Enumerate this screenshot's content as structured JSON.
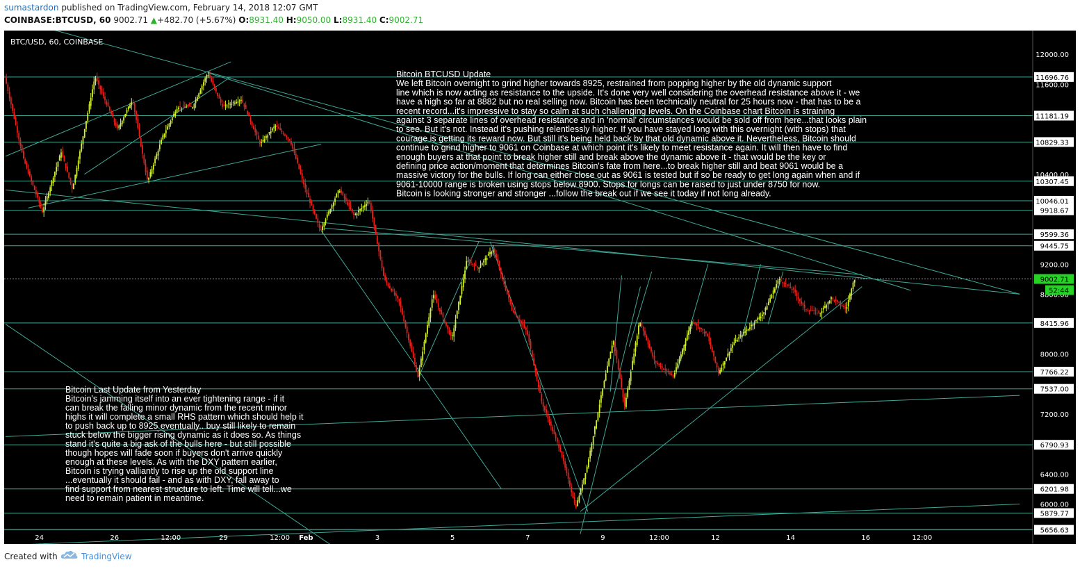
{
  "header": {
    "author": "sumastardon",
    "published_text": "published on TradingView.com, February 14, 2018 12:07 GMT",
    "symbol": "COINBASE:BTCUSD, 60",
    "last": "9002.71",
    "change": "+482.70 (+5.67%)",
    "o_label": "O:",
    "o_value": "8931.40",
    "h_label": "H:",
    "h_value": "9050.00",
    "l_label": "L:",
    "l_value": "8931.40",
    "c_label": "C:",
    "c_value": "9002.71"
  },
  "footer": {
    "created_label": "Created with",
    "brand": "TradingView",
    "logo_icon": "tradingview-cloud-icon"
  },
  "colors": {
    "background": "#000000",
    "up": "#d4f02a",
    "down": "#e8201a",
    "lines": "#3fa896",
    "text": "#ffffff",
    "price_tag_current": "#25d325",
    "price_tag_level": "#ffffff"
  },
  "chart_data": {
    "type": "candlestick",
    "title": "BTC/USD, 60, COINBASE",
    "xlabel": "",
    "ylabel": "",
    "ylim": [
      5550,
      12250
    ],
    "grid": false,
    "x_ticks": [
      "24",
      "26",
      "12:00",
      "29",
      "12:00",
      "Feb",
      "3",
      "5",
      "7",
      "9",
      "12:00",
      "12",
      "14",
      "16",
      "12:00"
    ],
    "x_tick_dates": [
      0.9,
      2.9,
      4.4,
      5.8,
      7.3,
      8.0,
      9.9,
      11.9,
      13.9,
      15.9,
      17.4,
      18.9,
      20.9,
      22.9,
      24.4
    ],
    "y_ticks": [
      6000,
      6400,
      6800,
      7200,
      7600,
      8000,
      8400,
      8800,
      9200,
      9600,
      10000,
      10400,
      10800,
      11200,
      11600,
      12000
    ],
    "y_ticks_visible": [
      "12000.00",
      "11600.00",
      "10400.00",
      "9200.00",
      "8800.00",
      "8000.00",
      "7200.00",
      "6400.00",
      "6000.00"
    ],
    "level_tags": [
      "11696.76",
      "11181.19",
      "10829.33",
      "10307.45",
      "10046.01",
      "9918.67",
      "9599.36",
      "9445.75",
      "8415.96",
      "7766.22",
      "7537.00",
      "6790.93",
      "6201.98",
      "5879.77",
      "5656.63"
    ],
    "levels": [
      11696.76,
      11181.19,
      10829.33,
      10307.45,
      10046.01,
      9918.67,
      9599.36,
      9445.75,
      8415.96,
      7766.22,
      7537.0,
      6790.93,
      6201.98,
      5879.77,
      5656.63
    ],
    "current_price_tag": "9002.71",
    "current_price": 9002.71,
    "countdown_tag": "52:44",
    "price_path": [
      [
        0.0,
        11700
      ],
      [
        0.5,
        10600
      ],
      [
        1.0,
        9900
      ],
      [
        1.5,
        10700
      ],
      [
        1.8,
        10200
      ],
      [
        2.4,
        11700
      ],
      [
        3.0,
        11000
      ],
      [
        3.4,
        11400
      ],
      [
        3.8,
        10300
      ],
      [
        4.2,
        10900
      ],
      [
        4.6,
        11300
      ],
      [
        5.0,
        11300
      ],
      [
        5.4,
        11750
      ],
      [
        5.8,
        11300
      ],
      [
        6.3,
        11400
      ],
      [
        6.8,
        10800
      ],
      [
        7.2,
        11050
      ],
      [
        7.6,
        10850
      ],
      [
        8.0,
        10200
      ],
      [
        8.4,
        9650
      ],
      [
        8.9,
        10200
      ],
      [
        9.3,
        9850
      ],
      [
        9.7,
        10050
      ],
      [
        10.1,
        9000
      ],
      [
        10.5,
        8700
      ],
      [
        11.0,
        7700
      ],
      [
        11.4,
        8800
      ],
      [
        11.9,
        8200
      ],
      [
        12.3,
        9250
      ],
      [
        12.6,
        9150
      ],
      [
        13.0,
        9400
      ],
      [
        13.5,
        8600
      ],
      [
        13.9,
        8300
      ],
      [
        14.3,
        7350
      ],
      [
        14.8,
        6700
      ],
      [
        15.2,
        5950
      ],
      [
        15.5,
        6500
      ],
      [
        15.9,
        7500
      ],
      [
        16.2,
        8200
      ],
      [
        16.5,
        7300
      ],
      [
        16.9,
        8450
      ],
      [
        17.3,
        7900
      ],
      [
        17.8,
        7700
      ],
      [
        18.3,
        8450
      ],
      [
        18.7,
        8250
      ],
      [
        19.0,
        7750
      ],
      [
        19.4,
        8150
      ],
      [
        19.8,
        8350
      ],
      [
        20.2,
        8550
      ],
      [
        20.6,
        9000
      ],
      [
        21.0,
        8850
      ],
      [
        21.3,
        8600
      ],
      [
        21.7,
        8550
      ],
      [
        22.0,
        8750
      ],
      [
        22.4,
        8600
      ],
      [
        22.6,
        9002.71
      ]
    ],
    "annotations": [
      {
        "title": "Bitcoin BTCUSD  Update",
        "lines": [
          "We left Bitcoin overnight to grind higher towards 8925, restrained from popping higher by the old dynamic support",
          "line which is now acting as resistance to the upside. It's done very well considering the overhead resistance above it - we",
          "have a high so far at 8882 but no real selling now. Bitcoin has been technically neutral for 25 hours now - that has to be a",
          "recent record...it's impressive to stay so calm at such challenging levels. On the Coinbase chart Bitcoin is straining",
          "against 3 separate lines of overhead resistance and in 'normal' circumstances would be sold off from here...that looks plain",
          "to see. But it's not. Instead it's pushing relentlessly higher. If you have stayed long with this overnight (with stops) that",
          "courage is getting its reward now. But still it's being held back by that old dynamic above it. Nevertheless, Bitcoin should",
          "continue to grind higher to 9061 on Coinbase at which point it's likely to meet resistance again. It will then have to find",
          "enough buyers at that point to break higher still and break above the dynamic above it - that would be the key or",
          "defining price action/moment that determines Bitcoin's fate from here...to break higher still and beat 9061 would be a",
          "massive victory for the bulls. If long can either close out as 9061 is tested but if so be ready to get long again when and if",
          "9061-10000 range is broken using stops below 8900. Stops for longs can be raised to just under 8750 for now.",
          "Bitcoin is looking stronger and stronger ...follow the break out if we see it today if not long already."
        ]
      },
      {
        "title": "Bitcoin  Last Update from Yesterday",
        "lines": [
          "Bitcoin's jamming itself into an ever tightening range  -  if it",
          "can break the falling minor dynamic from the recent minor",
          "highs it will complete a small RHS pattern which should help it",
          "to push back up to 8925 eventually.. buy still likely to remain",
          "stuck below the bigger rising dynamic as it does so. As things",
          "stand it's quite a big ask of the bulls here - but still possible",
          "though hopes will fade soon if buyers don't arrive quickly",
          "enough at these levels. As with the DXY pattern earlier,",
          "Bitcoin is trying valliantly to rise up the old support line",
          "...eventually it should fail -  and as with DXY, fall away to",
          "find support from nearest structure to left. Time will tell...we",
          "need to remain patient in meantime."
        ]
      }
    ],
    "trendlines": [
      [
        [
          0.0,
          10640
        ],
        [
          6.0,
          11900
        ]
      ],
      [
        [
          0.0,
          12500
        ],
        [
          27.0,
          8800
        ]
      ],
      [
        [
          5.4,
          11750
        ],
        [
          24.1,
          8850
        ]
      ],
      [
        [
          8.5,
          9680
        ],
        [
          22.8,
          9060
        ]
      ],
      [
        [
          0.0,
          10190
        ],
        [
          27.0,
          8800
        ]
      ],
      [
        [
          0.0,
          8400
        ],
        [
          10.0,
          5000
        ]
      ],
      [
        [
          0.0,
          6900
        ],
        [
          27.0,
          7450
        ]
      ],
      [
        [
          0.0,
          5450
        ],
        [
          27.0,
          6000
        ]
      ],
      [
        [
          0.6,
          9950
        ],
        [
          8.4,
          10800
        ]
      ],
      [
        [
          2.1,
          10400
        ],
        [
          6.0,
          11700
        ]
      ],
      [
        [
          8.4,
          9650
        ],
        [
          13.2,
          6200
        ]
      ],
      [
        [
          11.0,
          7700
        ],
        [
          12.6,
          9500
        ]
      ],
      [
        [
          12.9,
          9500
        ],
        [
          15.5,
          5900
        ]
      ],
      [
        [
          15.3,
          5600
        ],
        [
          16.9,
          8900
        ]
      ],
      [
        [
          15.3,
          5900
        ],
        [
          22.8,
          8900
        ]
      ],
      [
        [
          16.1,
          7500
        ],
        [
          16.4,
          9050
        ]
      ],
      [
        [
          16.6,
          8100
        ],
        [
          17.2,
          9100
        ]
      ],
      [
        [
          17.9,
          7800
        ],
        [
          18.7,
          9200
        ]
      ],
      [
        [
          19.6,
          8200
        ],
        [
          20.1,
          9200
        ]
      ],
      [
        [
          20.3,
          8400
        ],
        [
          20.7,
          9100
        ]
      ]
    ]
  }
}
